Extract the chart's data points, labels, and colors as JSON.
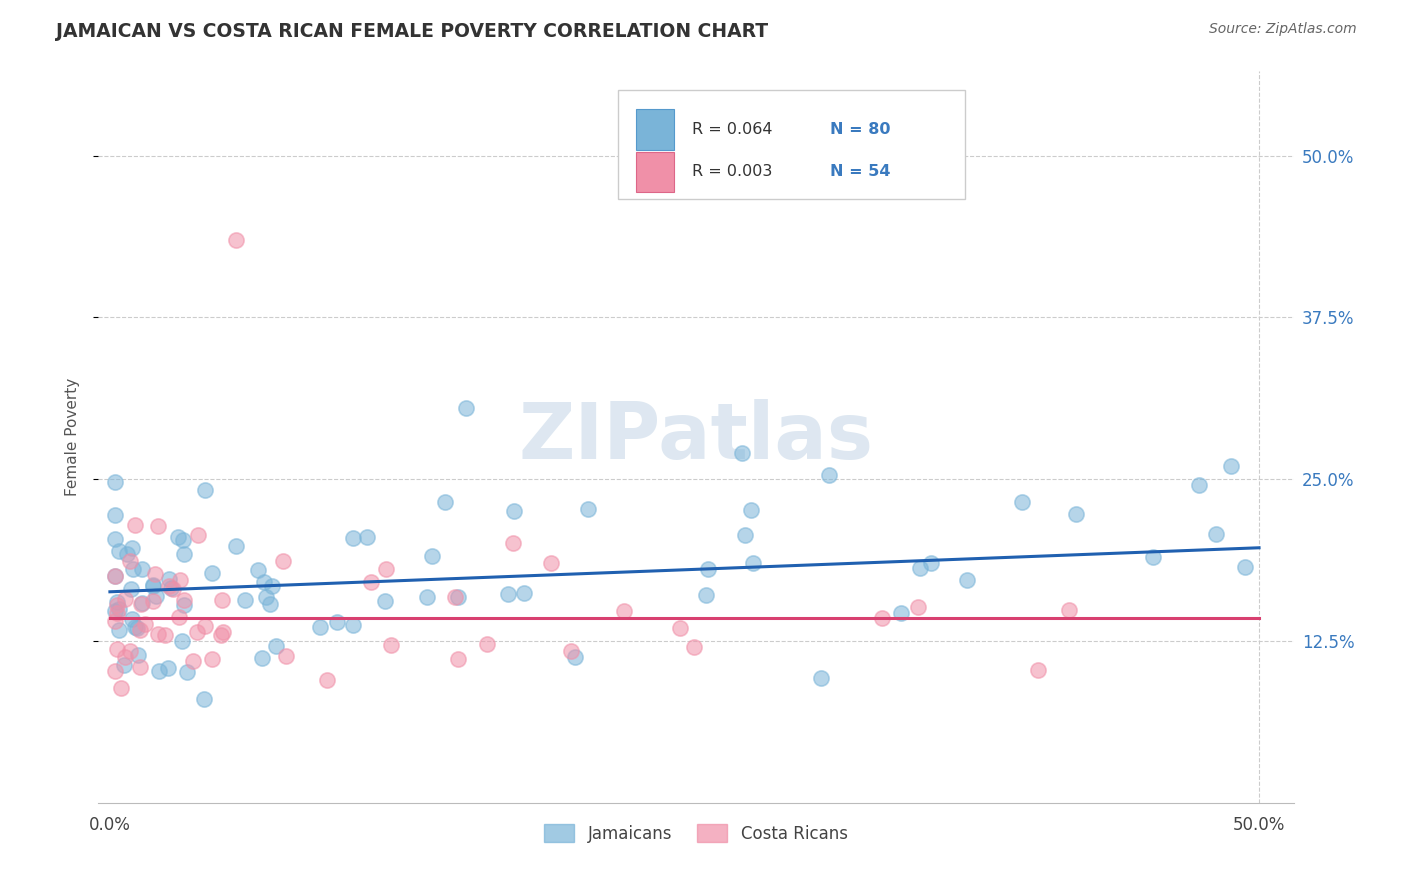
{
  "title": "JAMAICAN VS COSTA RICAN FEMALE POVERTY CORRELATION CHART",
  "source": "Source: ZipAtlas.com",
  "ylabel": "Female Poverty",
  "x_tick_positions": [
    0.0,
    0.125,
    0.25,
    0.375,
    0.5
  ],
  "x_tick_labels": [
    "0.0%",
    "",
    "",
    "",
    "50.0%"
  ],
  "y_tick_positions": [
    0.125,
    0.25,
    0.375,
    0.5
  ],
  "y_tick_labels": [
    "12.5%",
    "25.0%",
    "37.5%",
    "50.0%"
  ],
  "jamaican_color": "#7ab4d8",
  "costa_rican_color": "#f090a8",
  "jamaican_line_color": "#2060b0",
  "costa_rican_line_color": "#d84070",
  "legend_text_color": "#3a7abf",
  "R_jamaican": 0.064,
  "N_jamaican": 80,
  "R_costa_rican": 0.003,
  "N_costa_rican": 54,
  "watermark": "ZIPatlas",
  "background_color": "#ffffff",
  "grid_color": "#cccccc",
  "j_line_x": [
    0.0,
    0.5
  ],
  "j_line_y": [
    0.163,
    0.197
  ],
  "c_line_x": [
    0.0,
    0.5
  ],
  "c_line_y": [
    0.143,
    0.143
  ]
}
